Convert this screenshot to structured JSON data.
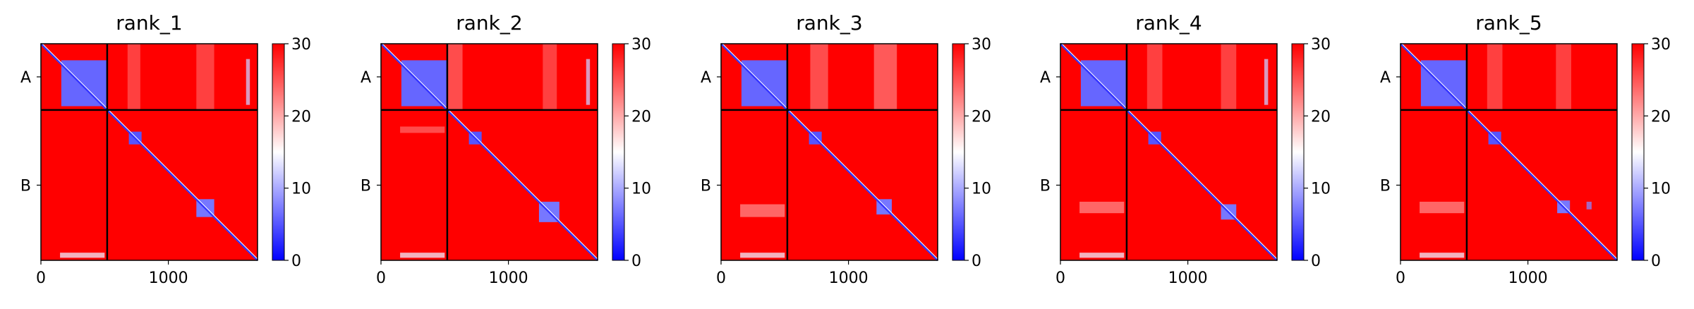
{
  "chart_data": [
    {
      "type": "heatmap",
      "title": "rank_1",
      "xticks": [
        0,
        1000
      ],
      "xlim": [
        0,
        1700
      ],
      "ylabels": [
        "A",
        "B"
      ],
      "chain_boundary": 520,
      "chain_total": 1700,
      "colorbar": {
        "ticks": [
          0,
          10,
          20,
          30
        ],
        "range": [
          0,
          30
        ],
        "colormap": [
          "#0000ff",
          "#ffffff",
          "#ff0000"
        ]
      },
      "background_value": 30,
      "diagonal": {
        "from": [
          0,
          0
        ],
        "to": [
          1700,
          1700
        ],
        "value": 3
      },
      "domains": [
        {
          "x0": 160,
          "x1": 520,
          "y0": 130,
          "y1": 490,
          "value": 6
        },
        {
          "x0": 690,
          "x1": 790,
          "y0": 690,
          "y1": 790,
          "value": 5
        },
        {
          "x0": 1220,
          "x1": 1360,
          "y0": 1220,
          "y1": 1360,
          "value": 7
        }
      ],
      "stripes": [
        {
          "x0": 680,
          "x1": 780,
          "y0": 0,
          "y1": 520,
          "value": 25
        },
        {
          "x0": 1220,
          "x1": 1360,
          "y0": 0,
          "y1": 520,
          "value": 25
        },
        {
          "x0": 1610,
          "x1": 1640,
          "y0": 120,
          "y1": 480,
          "value": 12
        },
        {
          "x0": 150,
          "x1": 500,
          "y0": 1640,
          "y1": 1680,
          "value": 14
        }
      ]
    },
    {
      "type": "heatmap",
      "title": "rank_2",
      "xticks": [
        0,
        1000
      ],
      "xlim": [
        0,
        1700
      ],
      "ylabels": [
        "A",
        "B"
      ],
      "chain_boundary": 520,
      "chain_total": 1700,
      "colorbar": {
        "ticks": [
          0,
          10,
          20,
          30
        ],
        "range": [
          0,
          30
        ],
        "colormap": [
          "#0000ff",
          "#ffffff",
          "#ff0000"
        ]
      },
      "background_value": 30,
      "diagonal": {
        "from": [
          0,
          0
        ],
        "to": [
          1700,
          1700
        ],
        "value": 3
      },
      "domains": [
        {
          "x0": 160,
          "x1": 520,
          "y0": 130,
          "y1": 490,
          "value": 6
        },
        {
          "x0": 690,
          "x1": 790,
          "y0": 690,
          "y1": 790,
          "value": 5
        },
        {
          "x0": 1240,
          "x1": 1400,
          "y0": 1240,
          "y1": 1400,
          "value": 7
        }
      ],
      "stripes": [
        {
          "x0": 520,
          "x1": 640,
          "y0": 0,
          "y1": 520,
          "value": 24
        },
        {
          "x0": 1270,
          "x1": 1380,
          "y0": 0,
          "y1": 520,
          "value": 25
        },
        {
          "x0": 1610,
          "x1": 1640,
          "y0": 120,
          "y1": 480,
          "value": 12
        },
        {
          "x0": 150,
          "x1": 500,
          "y0": 650,
          "y1": 700,
          "value": 24
        },
        {
          "x0": 150,
          "x1": 500,
          "y0": 1640,
          "y1": 1680,
          "value": 14
        }
      ]
    },
    {
      "type": "heatmap",
      "title": "rank_3",
      "xticks": [
        0,
        1000
      ],
      "xlim": [
        0,
        1700
      ],
      "ylabels": [
        "A",
        "B"
      ],
      "chain_boundary": 520,
      "chain_total": 1700,
      "colorbar": {
        "ticks": [
          0,
          10,
          20,
          30
        ],
        "range": [
          0,
          30
        ],
        "colormap": [
          "#0000ff",
          "#ffffff",
          "#ff0000"
        ]
      },
      "background_value": 30,
      "diagonal": {
        "from": [
          0,
          0
        ],
        "to": [
          1700,
          1700
        ],
        "value": 3
      },
      "domains": [
        {
          "x0": 160,
          "x1": 520,
          "y0": 130,
          "y1": 490,
          "value": 6
        },
        {
          "x0": 690,
          "x1": 790,
          "y0": 690,
          "y1": 790,
          "value": 5
        },
        {
          "x0": 1220,
          "x1": 1340,
          "y0": 1220,
          "y1": 1340,
          "value": 7
        }
      ],
      "stripes": [
        {
          "x0": 700,
          "x1": 840,
          "y0": 0,
          "y1": 520,
          "value": 24
        },
        {
          "x0": 1200,
          "x1": 1380,
          "y0": 0,
          "y1": 520,
          "value": 23
        },
        {
          "x0": 150,
          "x1": 500,
          "y0": 1260,
          "y1": 1360,
          "value": 22
        },
        {
          "x0": 150,
          "x1": 500,
          "y0": 1640,
          "y1": 1680,
          "value": 14
        }
      ]
    },
    {
      "type": "heatmap",
      "title": "rank_4",
      "xticks": [
        0,
        1000
      ],
      "xlim": [
        0,
        1700
      ],
      "ylabels": [
        "A",
        "B"
      ],
      "chain_boundary": 520,
      "chain_total": 1700,
      "colorbar": {
        "ticks": [
          0,
          10,
          20,
          30
        ],
        "range": [
          0,
          30
        ],
        "colormap": [
          "#0000ff",
          "#ffffff",
          "#ff0000"
        ]
      },
      "background_value": 30,
      "diagonal": {
        "from": [
          0,
          0
        ],
        "to": [
          1700,
          1700
        ],
        "value": 3
      },
      "domains": [
        {
          "x0": 160,
          "x1": 520,
          "y0": 130,
          "y1": 490,
          "value": 6
        },
        {
          "x0": 690,
          "x1": 790,
          "y0": 690,
          "y1": 790,
          "value": 5
        },
        {
          "x0": 1260,
          "x1": 1380,
          "y0": 1260,
          "y1": 1380,
          "value": 7
        }
      ],
      "stripes": [
        {
          "x0": 680,
          "x1": 800,
          "y0": 0,
          "y1": 520,
          "value": 25
        },
        {
          "x0": 1260,
          "x1": 1380,
          "y0": 0,
          "y1": 520,
          "value": 25
        },
        {
          "x0": 1600,
          "x1": 1630,
          "y0": 120,
          "y1": 480,
          "value": 12
        },
        {
          "x0": 150,
          "x1": 500,
          "y0": 1240,
          "y1": 1330,
          "value": 22
        },
        {
          "x0": 150,
          "x1": 500,
          "y0": 1640,
          "y1": 1680,
          "value": 14
        }
      ]
    },
    {
      "type": "heatmap",
      "title": "rank_5",
      "xticks": [
        0,
        1000
      ],
      "xlim": [
        0,
        1700
      ],
      "ylabels": [
        "A",
        "B"
      ],
      "chain_boundary": 520,
      "chain_total": 1700,
      "colorbar": {
        "ticks": [
          0,
          10,
          20,
          30
        ],
        "range": [
          0,
          30
        ],
        "colormap": [
          "#0000ff",
          "#ffffff",
          "#ff0000"
        ]
      },
      "background_value": 30,
      "diagonal": {
        "from": [
          0,
          0
        ],
        "to": [
          1700,
          1700
        ],
        "value": 3
      },
      "domains": [
        {
          "x0": 160,
          "x1": 520,
          "y0": 130,
          "y1": 490,
          "value": 6
        },
        {
          "x0": 690,
          "x1": 790,
          "y0": 690,
          "y1": 790,
          "value": 5
        },
        {
          "x0": 1230,
          "x1": 1330,
          "y0": 1230,
          "y1": 1330,
          "value": 7
        }
      ],
      "stripes": [
        {
          "x0": 680,
          "x1": 800,
          "y0": 0,
          "y1": 520,
          "value": 25
        },
        {
          "x0": 1220,
          "x1": 1340,
          "y0": 0,
          "y1": 520,
          "value": 25
        },
        {
          "x0": 1460,
          "x1": 1500,
          "y0": 1240,
          "y1": 1300,
          "value": 8
        },
        {
          "x0": 150,
          "x1": 500,
          "y0": 1240,
          "y1": 1330,
          "value": 22
        },
        {
          "x0": 150,
          "x1": 500,
          "y0": 1640,
          "y1": 1680,
          "value": 14
        }
      ]
    }
  ]
}
